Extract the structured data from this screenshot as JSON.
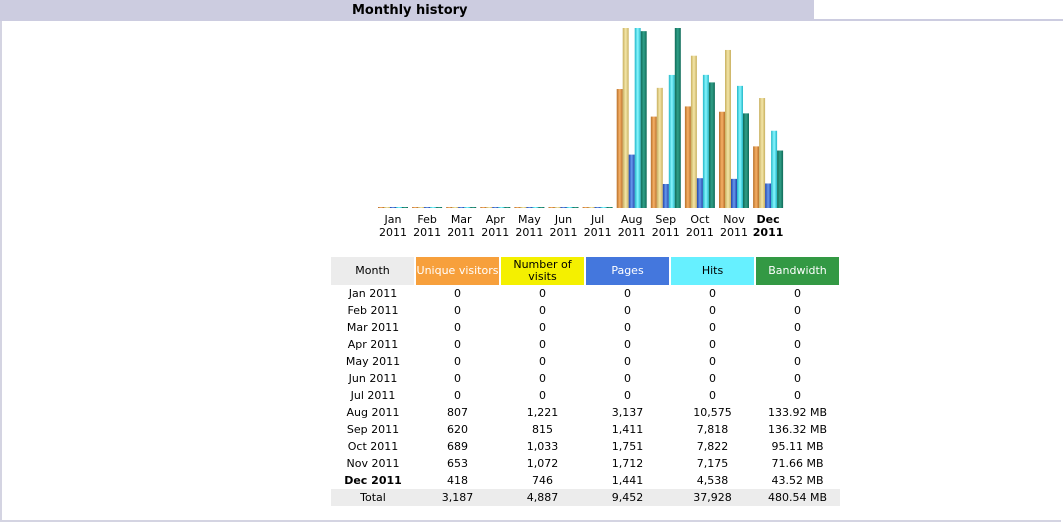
{
  "section": {
    "title": "Monthly history"
  },
  "chart_data": {
    "type": "bar",
    "categories": [
      {
        "month": "Jan",
        "year": "2011"
      },
      {
        "month": "Feb",
        "year": "2011"
      },
      {
        "month": "Mar",
        "year": "2011"
      },
      {
        "month": "Apr",
        "year": "2011"
      },
      {
        "month": "May",
        "year": "2011"
      },
      {
        "month": "Jun",
        "year": "2011"
      },
      {
        "month": "Jul",
        "year": "2011"
      },
      {
        "month": "Aug",
        "year": "2011"
      },
      {
        "month": "Sep",
        "year": "2011"
      },
      {
        "month": "Oct",
        "year": "2011"
      },
      {
        "month": "Nov",
        "year": "2011"
      },
      {
        "month": "Dec",
        "year": "2011"
      }
    ],
    "current_month_index": 11,
    "series": [
      {
        "name": "Unique visitors",
        "color": "#f7a03c",
        "values": [
          0,
          0,
          0,
          0,
          0,
          0,
          0,
          807,
          620,
          689,
          653,
          418
        ]
      },
      {
        "name": "Number of visits",
        "color": "#f0e08a",
        "values": [
          0,
          0,
          0,
          0,
          0,
          0,
          0,
          1221,
          815,
          1033,
          1072,
          746
        ]
      },
      {
        "name": "Pages",
        "color": "#4477dd",
        "values": [
          0,
          0,
          0,
          0,
          0,
          0,
          0,
          3137,
          1411,
          1751,
          1712,
          1441
        ]
      },
      {
        "name": "Hits",
        "color": "#66f0ff",
        "values": [
          0,
          0,
          0,
          0,
          0,
          0,
          0,
          10575,
          7818,
          7822,
          7175,
          4538
        ]
      },
      {
        "name": "Bandwidth",
        "color": "#2ea495",
        "values": [
          0,
          0,
          0,
          0,
          0,
          0,
          0,
          133.92,
          136.32,
          95.11,
          71.66,
          43.52
        ]
      }
    ],
    "scale_groups": [
      [
        "Unique visitors",
        "Number of visits"
      ],
      [
        "Pages",
        "Hits"
      ],
      [
        "Bandwidth"
      ]
    ]
  },
  "table": {
    "headers": [
      "Month",
      "Unique visitors",
      "Number of visits",
      "Pages",
      "Hits",
      "Bandwidth"
    ],
    "rows": [
      [
        "Jan 2011",
        "0",
        "0",
        "0",
        "0",
        "0"
      ],
      [
        "Feb 2011",
        "0",
        "0",
        "0",
        "0",
        "0"
      ],
      [
        "Mar 2011",
        "0",
        "0",
        "0",
        "0",
        "0"
      ],
      [
        "Apr 2011",
        "0",
        "0",
        "0",
        "0",
        "0"
      ],
      [
        "May 2011",
        "0",
        "0",
        "0",
        "0",
        "0"
      ],
      [
        "Jun 2011",
        "0",
        "0",
        "0",
        "0",
        "0"
      ],
      [
        "Jul 2011",
        "0",
        "0",
        "0",
        "0",
        "0"
      ],
      [
        "Aug 2011",
        "807",
        "1,221",
        "3,137",
        "10,575",
        "133.92 MB"
      ],
      [
        "Sep 2011",
        "620",
        "815",
        "1,411",
        "7,818",
        "136.32 MB"
      ],
      [
        "Oct 2011",
        "689",
        "1,033",
        "1,751",
        "7,822",
        "95.11 MB"
      ],
      [
        "Nov 2011",
        "653",
        "1,072",
        "1,712",
        "7,175",
        "71.66 MB"
      ],
      [
        "Dec 2011",
        "418",
        "746",
        "1,441",
        "4,538",
        "43.52 MB"
      ]
    ],
    "total": [
      "Total",
      "3,187",
      "4,887",
      "9,452",
      "37,928",
      "480.54 MB"
    ]
  }
}
